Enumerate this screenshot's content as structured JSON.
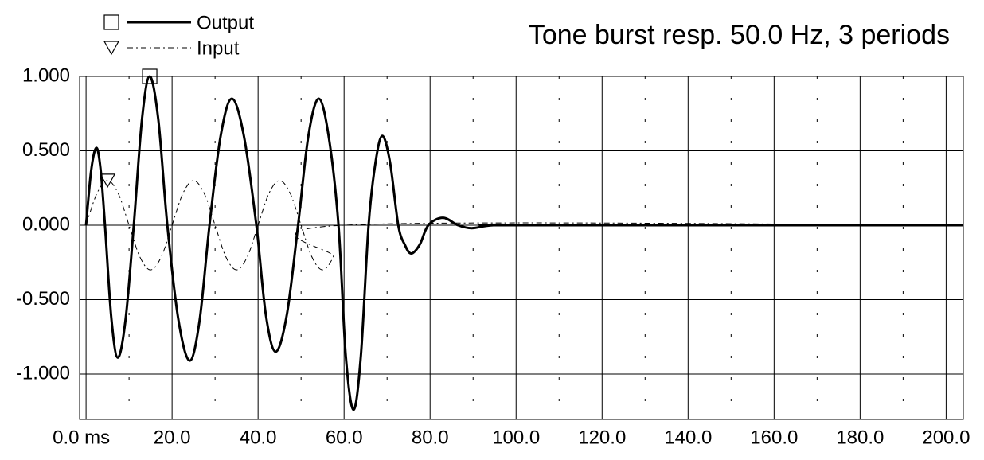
{
  "chart_data": {
    "type": "line",
    "title": "Tone burst resp. 50.0 Hz, 3 periods",
    "xlim": [
      -1.5,
      204
    ],
    "ylim": [
      -1.305,
      1.0
    ],
    "xticks": [
      {
        "value": 0,
        "label": "0.0 ms"
      },
      {
        "value": 20,
        "label": "20.0"
      },
      {
        "value": 40,
        "label": "40.0"
      },
      {
        "value": 60,
        "label": "60.0"
      },
      {
        "value": 80,
        "label": "80.0"
      },
      {
        "value": 100,
        "label": "100.0"
      },
      {
        "value": 120,
        "label": "120.0"
      },
      {
        "value": 140,
        "label": "140.0"
      },
      {
        "value": 160,
        "label": "160.0"
      },
      {
        "value": 180,
        "label": "180.0"
      },
      {
        "value": 200,
        "label": "200.0"
      }
    ],
    "x_minor_grid": [
      10,
      30,
      50,
      70,
      90,
      110,
      130,
      150,
      170,
      190
    ],
    "yticks": [
      {
        "value": 1,
        "label": "1.000"
      },
      {
        "value": 0.5,
        "label": "0.500"
      },
      {
        "value": 0,
        "label": "0.000"
      },
      {
        "value": -0.5,
        "label": "-0.500"
      },
      {
        "value": -1,
        "label": "-1.000"
      }
    ],
    "grid": true,
    "legend": "top-left",
    "series": [
      {
        "name": "Output",
        "color": "#000000",
        "line_style": "solid",
        "marker": "square",
        "x": [
          0,
          1.2,
          2.4,
          3.4,
          4.4,
          5.9,
          7.4,
          9.2,
          11.1,
          13,
          14.8,
          16.8,
          18.9,
          21.5,
          24.1,
          26.4,
          28.7,
          31.3,
          33.9,
          36.7,
          39.6,
          41.8,
          44.1,
          46.7,
          49.3,
          51.7,
          54.1,
          56.4,
          58.7,
          60.4,
          62.2,
          63.9,
          65.7,
          67.3,
          68.9,
          70.7,
          72.6,
          74.1,
          75.6,
          77.6,
          79.6,
          83,
          86.5,
          89.6,
          93,
          97,
          100,
          204
        ],
        "values": [
          0,
          0.37,
          0.52,
          0.37,
          0,
          -0.63,
          -0.89,
          -0.63,
          0,
          0.71,
          1.0,
          0.71,
          0,
          -0.64,
          -0.91,
          -0.64,
          0,
          0.6,
          0.85,
          0.6,
          0,
          -0.6,
          -0.85,
          -0.6,
          0,
          0.6,
          0.85,
          0.6,
          0,
          -0.88,
          -1.24,
          -0.88,
          0,
          0.42,
          0.6,
          0.42,
          0,
          -0.13,
          -0.19,
          -0.13,
          0,
          0.05,
          0,
          -0.02,
          -0.005,
          0.003,
          0,
          0
        ]
      },
      {
        "name": "Input",
        "color": "#000000",
        "line_style": "dash-dot",
        "marker": "triangle",
        "x": [
          0,
          2.5,
          5,
          7.5,
          10,
          12.5,
          15,
          17.5,
          20,
          22.5,
          25,
          27.5,
          30,
          32.5,
          35,
          37.5,
          40,
          42.5,
          45,
          47.5,
          50,
          52.5,
          55,
          57.5,
          60,
          204
        ],
        "values": [
          0,
          0.212,
          0.3,
          0.212,
          0,
          -0.212,
          -0.3,
          -0.212,
          0,
          0.212,
          0.3,
          0.212,
          0,
          -0.212,
          -0.3,
          -0.212,
          0,
          0.212,
          0.3,
          0.212,
          0,
          -0.212,
          -0.3,
          -0.212,
          0,
          0
        ]
      }
    ]
  }
}
